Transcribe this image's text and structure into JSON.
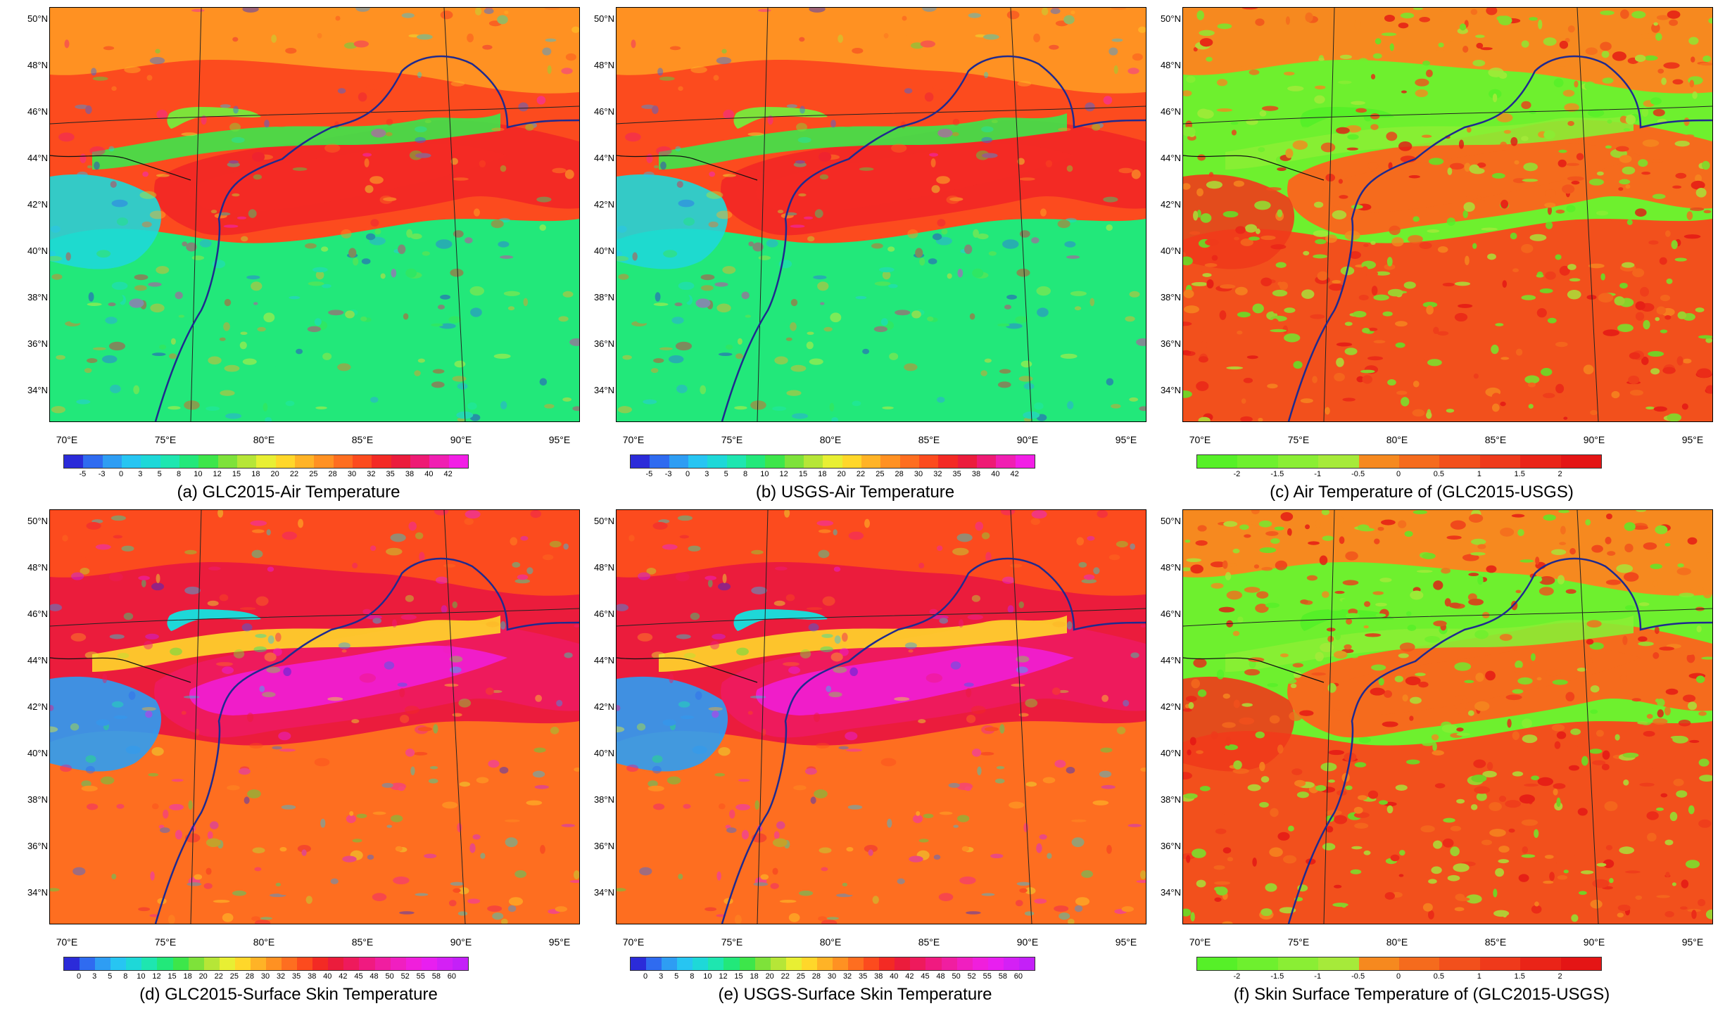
{
  "figure": {
    "panels": [
      {
        "id": "a",
        "caption": "(a) GLC2015-Air Temperature",
        "field": "air",
        "colorbar": {
          "ticks": [
            "-5",
            "-3",
            "0",
            "3",
            "5",
            "8",
            "10",
            "12",
            "15",
            "18",
            "20",
            "22",
            "25",
            "28",
            "30",
            "32",
            "35",
            "38",
            "40",
            "42"
          ],
          "colors": [
            "#2b2bd9",
            "#2f6bf0",
            "#2e9df3",
            "#27c5f2",
            "#1ed8d8",
            "#1ee6b0",
            "#22e87a",
            "#3de64a",
            "#7ee23a",
            "#b6e637",
            "#e8ef33",
            "#ffd72a",
            "#ffb326",
            "#ff9122",
            "#fe6e20",
            "#fc4b1e",
            "#f32a24",
            "#eb1c3c",
            "#ee1a74",
            "#f01fb2",
            "#f21fe6"
          ]
        }
      },
      {
        "id": "b",
        "caption": "(b) USGS-Air Temperature",
        "field": "air",
        "colorbar": {
          "ticks": [
            "-5",
            "-3",
            "0",
            "3",
            "5",
            "8",
            "10",
            "12",
            "15",
            "18",
            "20",
            "22",
            "25",
            "28",
            "30",
            "32",
            "35",
            "38",
            "40",
            "42"
          ],
          "colors": [
            "#2b2bd9",
            "#2f6bf0",
            "#2e9df3",
            "#27c5f2",
            "#1ed8d8",
            "#1ee6b0",
            "#22e87a",
            "#3de64a",
            "#7ee23a",
            "#b6e637",
            "#e8ef33",
            "#ffd72a",
            "#ffb326",
            "#ff9122",
            "#fe6e20",
            "#fc4b1e",
            "#f32a24",
            "#eb1c3c",
            "#ee1a74",
            "#f01fb2",
            "#f21fe6"
          ]
        }
      },
      {
        "id": "c",
        "caption": "(c) Air Temperature of (GLC2015-USGS)",
        "field": "diff",
        "colorbar": {
          "ticks": [
            "-2",
            "-1.5",
            "-1",
            "-0.5",
            "0",
            "0.5",
            "1",
            "1.5",
            "2"
          ],
          "colors": [
            "#56f028",
            "#6ef02e",
            "#8aee34",
            "#a6ea3a",
            "#f6891f",
            "#f56b1d",
            "#f2501c",
            "#ef3a1b",
            "#ea2418",
            "#e41515"
          ]
        }
      },
      {
        "id": "d",
        "caption": "(d) GLC2015-Surface Skin Temperature",
        "field": "skin",
        "colorbar": {
          "ticks": [
            "0",
            "3",
            "5",
            "8",
            "10",
            "12",
            "15",
            "18",
            "20",
            "22",
            "25",
            "28",
            "30",
            "32",
            "35",
            "38",
            "40",
            "42",
            "45",
            "48",
            "50",
            "52",
            "55",
            "58",
            "60"
          ],
          "colors": [
            "#2b2bd9",
            "#2f6bf0",
            "#2e9df3",
            "#27c5f2",
            "#1ed8d8",
            "#1ee6b0",
            "#22e87a",
            "#3de64a",
            "#7ee23a",
            "#b6e637",
            "#e8ef33",
            "#ffd72a",
            "#ffb326",
            "#ff9122",
            "#fe6e20",
            "#fc4b1e",
            "#f32a24",
            "#eb1c3c",
            "#ee1a5c",
            "#f01a80",
            "#f01ea0",
            "#f01fc0",
            "#f01fdc",
            "#e81ff0",
            "#d420f5",
            "#c420f8"
          ]
        }
      },
      {
        "id": "e",
        "caption": "(e) USGS-Surface Skin Temperature",
        "field": "skin",
        "colorbar": {
          "ticks": [
            "0",
            "3",
            "5",
            "8",
            "10",
            "12",
            "15",
            "18",
            "20",
            "22",
            "25",
            "28",
            "30",
            "32",
            "35",
            "38",
            "40",
            "42",
            "45",
            "48",
            "50",
            "52",
            "55",
            "58",
            "60"
          ],
          "colors": [
            "#2b2bd9",
            "#2f6bf0",
            "#2e9df3",
            "#27c5f2",
            "#1ed8d8",
            "#1ee6b0",
            "#22e87a",
            "#3de64a",
            "#7ee23a",
            "#b6e637",
            "#e8ef33",
            "#ffd72a",
            "#ffb326",
            "#ff9122",
            "#fe6e20",
            "#fc4b1e",
            "#f32a24",
            "#eb1c3c",
            "#ee1a5c",
            "#f01a80",
            "#f01ea0",
            "#f01fc0",
            "#f01fdc",
            "#e81ff0",
            "#d420f5",
            "#c420f8"
          ]
        }
      },
      {
        "id": "f",
        "caption": "(f) Skin Surface Temperature of (GLC2015-USGS)",
        "field": "diffskin",
        "colorbar": {
          "ticks": [
            "-2",
            "-1.5",
            "-1",
            "-0.5",
            "0",
            "0.5",
            "1",
            "1.5",
            "2"
          ],
          "colors": [
            "#56f028",
            "#6ef02e",
            "#8aee34",
            "#a6ea3a",
            "#f6891f",
            "#f56b1d",
            "#f2501c",
            "#ef3a1b",
            "#ea2418",
            "#e41515"
          ]
        }
      }
    ],
    "lat_labels": [
      "50°N",
      "48°N",
      "46°N",
      "44°N",
      "42°N",
      "40°N",
      "38°N",
      "36°N",
      "34°N"
    ],
    "lon_labels": [
      "70°E",
      "75°E",
      "80°E",
      "85°E",
      "90°E",
      "95°E"
    ]
  }
}
